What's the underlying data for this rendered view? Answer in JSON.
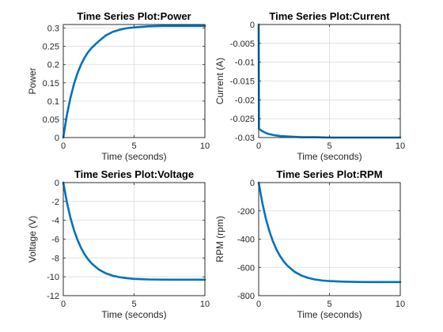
{
  "colors": {
    "series": "#0072bd",
    "grid": "#dcdcdc",
    "axes": "#262626"
  },
  "chart_data": [
    {
      "id": "power",
      "type": "line",
      "title": "Time Series Plot:Power",
      "xlabel": "Time (seconds)",
      "ylabel": "Power",
      "xlim": [
        0,
        10
      ],
      "ylim": [
        0,
        0.31
      ],
      "xticks": [
        0,
        5,
        10
      ],
      "yticks": [
        0,
        0.05,
        0.1,
        0.15,
        0.2,
        0.25,
        0.3
      ],
      "xticklabels": [
        "0",
        "5",
        "10"
      ],
      "yticklabels": [
        "0",
        "0.05",
        "0.1",
        "0.15",
        "0.2",
        "0.25",
        "0.3"
      ],
      "grid": true,
      "series": [
        {
          "x": [
            0,
            0.25,
            0.5,
            0.75,
            1,
            1.25,
            1.5,
            1.75,
            2,
            2.5,
            3,
            3.5,
            4,
            4.5,
            5,
            6,
            7,
            8,
            9,
            10
          ],
          "y": [
            0,
            0.061,
            0.108,
            0.146,
            0.176,
            0.2,
            0.219,
            0.234,
            0.246,
            0.264,
            0.28,
            0.29,
            0.296,
            0.3,
            0.302,
            0.305,
            0.306,
            0.306,
            0.306,
            0.306
          ]
        }
      ]
    },
    {
      "id": "current",
      "type": "line",
      "title": "Time Series Plot:Current",
      "xlabel": "Time (seconds)",
      "ylabel": "Current (A)",
      "xlim": [
        0,
        10
      ],
      "ylim": [
        -0.03,
        0
      ],
      "xticks": [
        0,
        5,
        10
      ],
      "yticks": [
        -0.03,
        -0.025,
        -0.02,
        -0.015,
        -0.01,
        -0.005,
        0
      ],
      "xticklabels": [
        "0",
        "5",
        "10"
      ],
      "yticklabels": [
        "-0.03",
        "-0.025",
        "-0.02",
        "-0.015",
        "-0.01",
        "-0.005",
        "0"
      ],
      "grid": true,
      "series": [
        {
          "x": [
            0,
            0.02,
            0.1,
            0.25,
            0.5,
            0.75,
            1,
            1.5,
            2,
            2.5,
            3,
            4,
            5,
            6,
            7,
            8,
            9,
            10
          ],
          "y": [
            0,
            -0.0277,
            -0.0279,
            -0.0283,
            -0.0288,
            -0.0291,
            -0.0293,
            -0.0296,
            -0.0297,
            -0.0298,
            -0.0299,
            -0.0299,
            -0.03,
            -0.03,
            -0.03,
            -0.03,
            -0.03,
            -0.03
          ]
        }
      ]
    },
    {
      "id": "voltage",
      "type": "line",
      "title": "Time Series Plot:Voltage",
      "xlabel": "Time (seconds)",
      "ylabel": "Voltage (V)",
      "xlim": [
        0,
        10
      ],
      "ylim": [
        -12,
        0
      ],
      "xticks": [
        0,
        5,
        10
      ],
      "yticks": [
        -12,
        -10,
        -8,
        -6,
        -4,
        -2,
        0
      ],
      "xticklabels": [
        "0",
        "5",
        "10"
      ],
      "yticklabels": [
        "-12",
        "-10",
        "-8",
        "-6",
        "-4",
        "-2",
        "0"
      ],
      "grid": true,
      "series": [
        {
          "x": [
            0,
            0.25,
            0.5,
            0.75,
            1,
            1.25,
            1.5,
            1.75,
            2,
            2.5,
            3,
            3.5,
            4,
            4.5,
            5,
            6,
            7,
            8,
            9,
            10
          ],
          "y": [
            0,
            -2.05,
            -3.7,
            -5.01,
            -6.07,
            -6.92,
            -7.6,
            -8.14,
            -8.58,
            -9.22,
            -9.63,
            -9.89,
            -10.05,
            -10.15,
            -10.22,
            -10.28,
            -10.3,
            -10.31,
            -10.31,
            -10.31
          ]
        }
      ]
    },
    {
      "id": "rpm",
      "type": "line",
      "title": "Time Series Plot:RPM",
      "xlabel": "Time (seconds)",
      "ylabel": "RPM (rpm)",
      "xlim": [
        0,
        10
      ],
      "ylim": [
        -800,
        0
      ],
      "xticks": [
        0,
        5,
        10
      ],
      "yticks": [
        -800,
        -600,
        -400,
        -200,
        0
      ],
      "xticklabels": [
        "0",
        "5",
        "10"
      ],
      "yticklabels": [
        "-800",
        "-600",
        "-400",
        "-200",
        "0"
      ],
      "grid": true,
      "series": [
        {
          "x": [
            0,
            0.25,
            0.5,
            0.75,
            1,
            1.25,
            1.5,
            1.75,
            2,
            2.5,
            3,
            3.5,
            4,
            4.5,
            5,
            6,
            7,
            8,
            9,
            10
          ],
          "y": [
            0,
            -140,
            -252,
            -342,
            -414,
            -472,
            -518,
            -555,
            -585,
            -629,
            -657,
            -675,
            -686,
            -693,
            -697,
            -701,
            -703,
            -704,
            -704,
            -704
          ]
        }
      ]
    }
  ]
}
